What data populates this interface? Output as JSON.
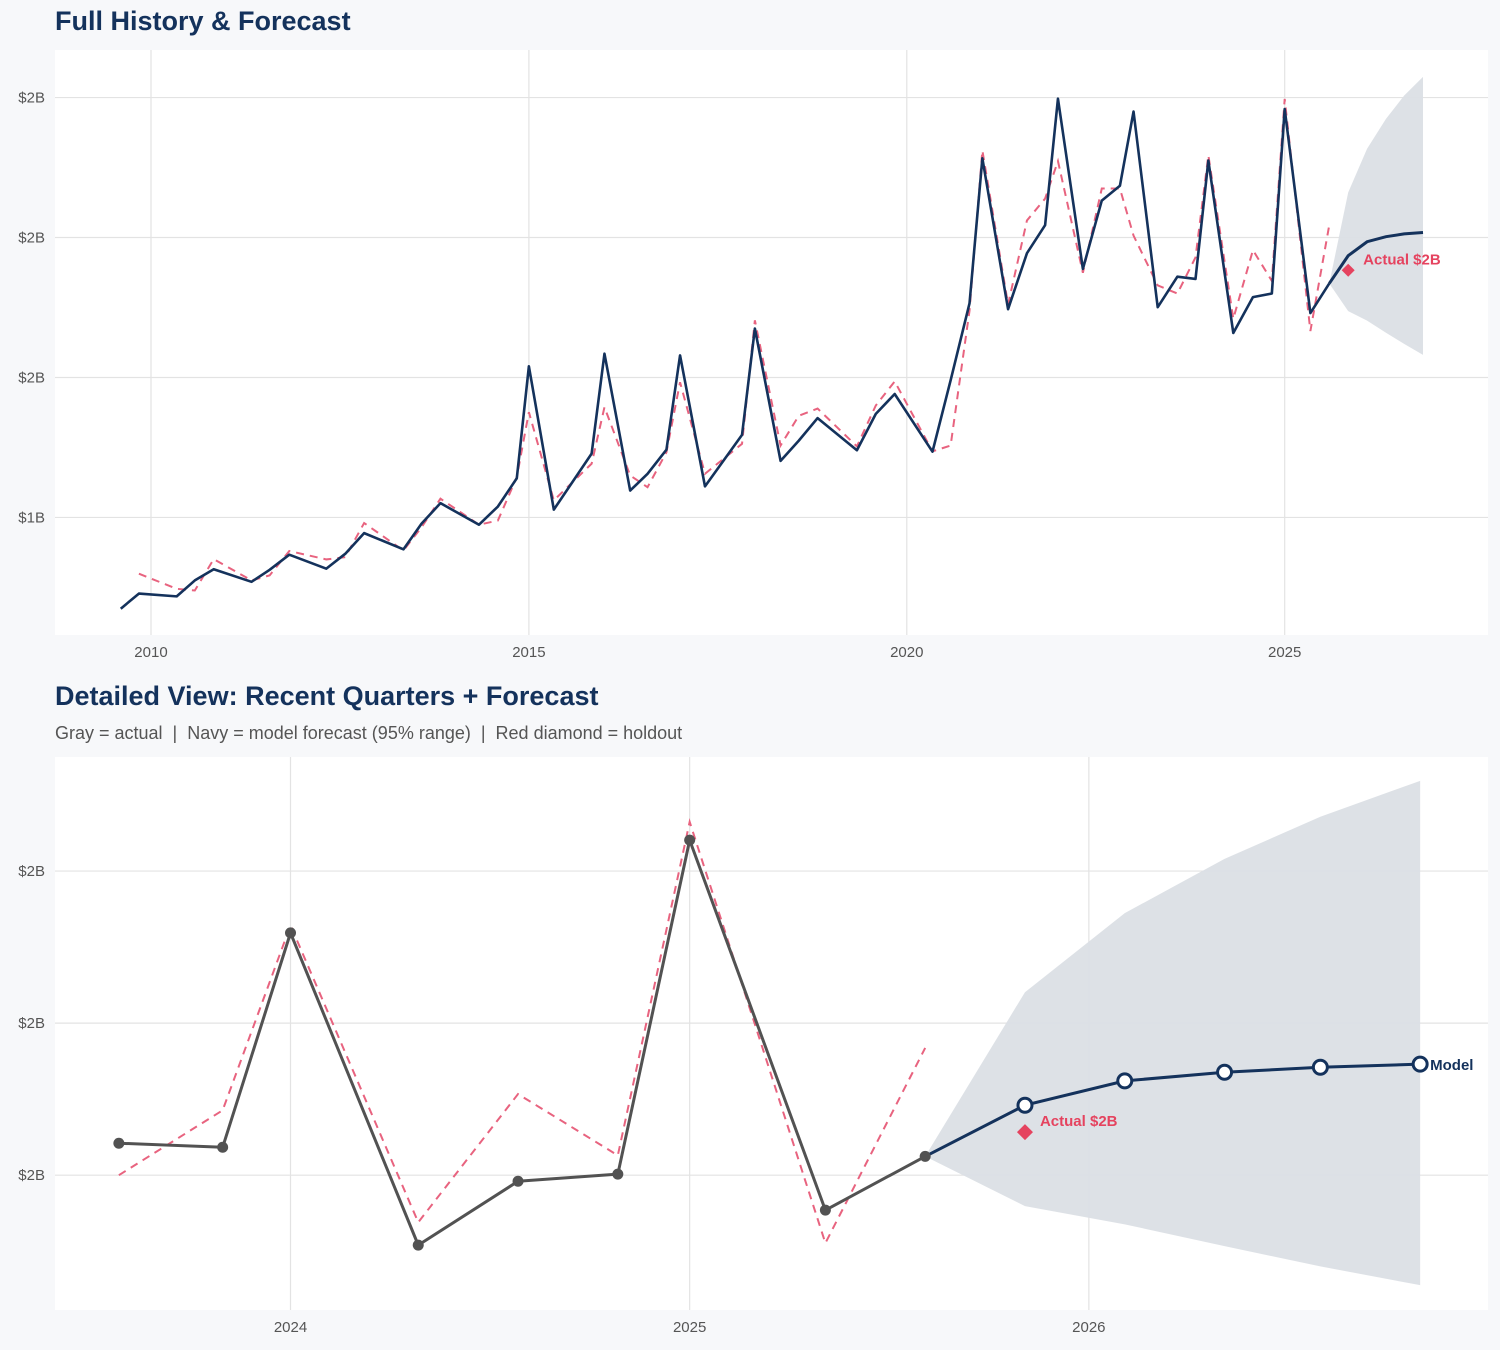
{
  "colors": {
    "background": "#f7f8fa",
    "panel": "#ffffff",
    "grid": "#e3e3e3",
    "navy": "#14325c",
    "fitted_red": "#e8637f",
    "holdout_red": "#e5435f",
    "actual_gray": "#525252",
    "band": "#dbdfe5"
  },
  "chart_data": [
    {
      "type": "line",
      "title": "Full History & Forecast",
      "xlabel": "",
      "ylabel": "",
      "xlim": [
        2008.73,
        2027.69
      ],
      "ylim": [
        0.58,
        2.67
      ],
      "grid": true,
      "x_ticks": [
        {
          "value": 2010,
          "label": "2010"
        },
        {
          "value": 2015,
          "label": "2015"
        },
        {
          "value": 2020,
          "label": "2020"
        },
        {
          "value": 2025,
          "label": "2025"
        }
      ],
      "y_ticks": [
        {
          "value": 1.0,
          "label": "$1B"
        },
        {
          "value": 1.5,
          "label": "$2B"
        },
        {
          "value": 2.0,
          "label": "$2B"
        },
        {
          "value": 2.5,
          "label": "$2B"
        }
      ],
      "actual": {
        "x": [
          2009.6,
          2009.84,
          2010.34,
          2010.58,
          2010.83,
          2011.33,
          2011.57,
          2011.83,
          2012.32,
          2012.57,
          2012.82,
          2013.34,
          2013.58,
          2013.83,
          2014.34,
          2014.59,
          2014.84,
          2015.0,
          2015.33,
          2015.83,
          2016.0,
          2016.34,
          2016.57,
          2016.82,
          2017.0,
          2017.33,
          2017.82,
          2017.99,
          2018.33,
          2018.57,
          2018.82,
          2019.34,
          2019.59,
          2019.84,
          2020.34,
          2020.58,
          2020.83,
          2021.0,
          2021.34,
          2021.59,
          2021.83,
          2022.0,
          2022.33,
          2022.58,
          2022.82,
          2023.0,
          2023.32,
          2023.58,
          2023.82,
          2023.99,
          2024.32,
          2024.58,
          2024.83,
          2025.0,
          2025.34,
          2025.59
        ],
        "y": [
          0.674,
          0.728,
          0.718,
          0.775,
          0.815,
          0.77,
          0.813,
          0.867,
          0.817,
          0.87,
          0.944,
          0.886,
          0.978,
          1.051,
          0.974,
          1.039,
          1.14,
          1.54,
          1.028,
          1.228,
          1.585,
          1.096,
          1.156,
          1.242,
          1.579,
          1.111,
          1.295,
          1.675,
          1.202,
          1.274,
          1.355,
          1.24,
          1.37,
          1.441,
          1.235,
          1.49,
          1.765,
          2.283,
          1.744,
          1.944,
          2.044,
          2.496,
          1.888,
          2.132,
          2.185,
          2.45,
          1.751,
          1.86,
          1.852,
          2.275,
          1.659,
          1.787,
          1.8,
          2.459,
          1.73,
          1.836
        ]
      },
      "fitted": {
        "x": [
          2009.84,
          2010.34,
          2010.58,
          2010.83,
          2011.33,
          2011.57,
          2011.83,
          2012.32,
          2012.57,
          2012.82,
          2013.34,
          2013.58,
          2013.83,
          2014.34,
          2014.59,
          2014.84,
          2015.0,
          2015.33,
          2015.83,
          2016.0,
          2016.34,
          2016.57,
          2016.82,
          2017.0,
          2017.33,
          2017.82,
          2017.99,
          2018.33,
          2018.57,
          2018.82,
          2019.34,
          2019.59,
          2019.84,
          2020.34,
          2020.58,
          2020.83,
          2021.0,
          2021.34,
          2021.59,
          2021.83,
          2022.0,
          2022.33,
          2022.58,
          2022.82,
          2023.0,
          2023.32,
          2023.58,
          2023.82,
          2023.99,
          2024.32,
          2024.58,
          2024.83,
          2025.0,
          2025.34,
          2025.59
        ],
        "y": [
          0.799,
          0.745,
          0.739,
          0.851,
          0.775,
          0.793,
          0.88,
          0.85,
          0.858,
          0.98,
          0.882,
          0.965,
          1.067,
          0.974,
          0.989,
          1.144,
          1.376,
          1.061,
          1.192,
          1.394,
          1.15,
          1.108,
          1.233,
          1.483,
          1.156,
          1.263,
          1.704,
          1.257,
          1.363,
          1.389,
          1.254,
          1.4,
          1.486,
          1.236,
          1.257,
          1.739,
          2.311,
          1.761,
          2.061,
          2.139,
          2.273,
          1.874,
          2.175,
          2.175,
          2.007,
          1.829,
          1.8,
          1.929,
          2.294,
          1.71,
          1.955,
          1.845,
          2.495,
          1.666,
          2.045
        ]
      },
      "forecast": {
        "x": [
          2025.84,
          2026.09,
          2026.34,
          2026.58,
          2026.83
        ],
        "y": [
          1.935,
          1.985,
          2.003,
          2.013,
          2.018
        ],
        "lower": [
          1.737,
          1.703,
          1.66,
          1.62,
          1.581
        ],
        "upper": [
          2.161,
          2.317,
          2.424,
          2.507,
          2.574
        ]
      },
      "holdout": {
        "x": 2025.84,
        "y": 1.883,
        "label": "Actual $2B"
      }
    },
    {
      "type": "line",
      "title": "Detailed View: Recent Quarters + Forecast",
      "subtitle": "Gray = actual  |  Navy = model forecast (95% range)  |  Red diamond = holdout",
      "xlabel": "",
      "ylabel": "",
      "xlim": [
        2023.41,
        2027.0
      ],
      "ylim": [
        1.534,
        2.625
      ],
      "grid": true,
      "x_ticks": [
        {
          "value": 2024,
          "label": "2024"
        },
        {
          "value": 2025,
          "label": "2025"
        },
        {
          "value": 2026,
          "label": "2026"
        }
      ],
      "y_ticks": [
        {
          "value": 1.8,
          "label": "$2B"
        },
        {
          "value": 2.1,
          "label": "$2B"
        },
        {
          "value": 2.4,
          "label": "$2B"
        }
      ],
      "actual": {
        "x": [
          2023.57,
          2023.83,
          2024.0,
          2024.32,
          2024.57,
          2024.82,
          2025.0,
          2025.34,
          2025.59
        ],
        "y": [
          1.863,
          1.855,
          2.278,
          1.662,
          1.788,
          1.802,
          2.461,
          1.731,
          1.837
        ]
      },
      "fitted": {
        "x": [
          2023.57,
          2023.83,
          2024.0,
          2024.32,
          2024.57,
          2024.82,
          2025.0,
          2025.34,
          2025.59
        ],
        "y": [
          1.8,
          1.928,
          2.293,
          1.707,
          1.96,
          1.839,
          2.497,
          1.666,
          2.051
        ]
      },
      "forecast": {
        "x": [
          2025.84,
          2026.09,
          2026.34,
          2026.58,
          2026.83
        ],
        "y": [
          1.938,
          1.986,
          2.003,
          2.013,
          2.019
        ],
        "lower": [
          1.739,
          1.703,
          1.66,
          1.62,
          1.583
        ],
        "upper": [
          2.161,
          2.317,
          2.424,
          2.507,
          2.578
        ],
        "label": "Model"
      },
      "holdout": {
        "x": 2025.84,
        "y": 1.885,
        "label": "Actual $2B"
      }
    }
  ]
}
